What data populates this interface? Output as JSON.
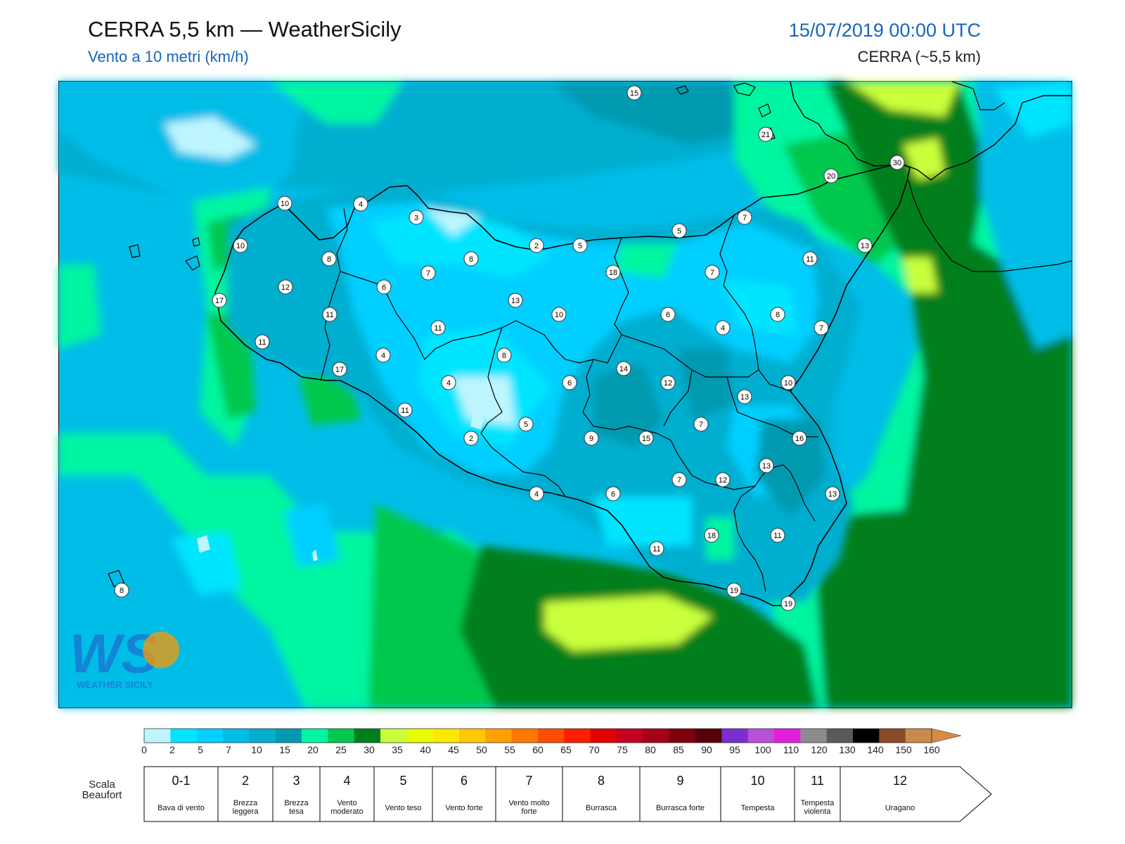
{
  "header": {
    "title": "CERRA 5,5 km — WeatherSicily",
    "subtitle": "Vento a 10 metri (km/h)",
    "date": "15/07/2019 00:00 UTC",
    "model": "CERRA (~5,5 km)"
  },
  "logo": {
    "letters": "WS",
    "text": "WEATHER SICILY"
  },
  "map": {
    "station_values": [
      {
        "id": "s1",
        "value": "15"
      },
      {
        "id": "s2",
        "value": "21"
      },
      {
        "id": "s3",
        "value": "30"
      },
      {
        "id": "s4",
        "value": "20"
      },
      {
        "id": "s5",
        "value": "10"
      },
      {
        "id": "s6",
        "value": "4"
      },
      {
        "id": "s7",
        "value": "3"
      },
      {
        "id": "s8",
        "value": "10"
      },
      {
        "id": "s9",
        "value": "2"
      },
      {
        "id": "s10",
        "value": "5"
      },
      {
        "id": "s11",
        "value": "5"
      },
      {
        "id": "s12",
        "value": "7"
      },
      {
        "id": "s13",
        "value": "13"
      },
      {
        "id": "s14",
        "value": "8"
      },
      {
        "id": "s15",
        "value": "8"
      },
      {
        "id": "s16",
        "value": "7"
      },
      {
        "id": "s17",
        "value": "18"
      },
      {
        "id": "s18",
        "value": "7"
      },
      {
        "id": "s19",
        "value": "11"
      },
      {
        "id": "s20",
        "value": "12"
      },
      {
        "id": "s21",
        "value": "6"
      },
      {
        "id": "s22",
        "value": "17"
      },
      {
        "id": "s23",
        "value": "11"
      },
      {
        "id": "s24",
        "value": "13"
      },
      {
        "id": "s25",
        "value": "10"
      },
      {
        "id": "s26",
        "value": "6"
      },
      {
        "id": "s27",
        "value": "4"
      },
      {
        "id": "s28",
        "value": "8"
      },
      {
        "id": "s29",
        "value": "7"
      },
      {
        "id": "s30",
        "value": "11"
      },
      {
        "id": "s31",
        "value": "11"
      },
      {
        "id": "s32",
        "value": "17"
      },
      {
        "id": "s33",
        "value": "4"
      },
      {
        "id": "s34",
        "value": "8"
      },
      {
        "id": "s35",
        "value": "14"
      },
      {
        "id": "s36",
        "value": "4"
      },
      {
        "id": "s37",
        "value": "6"
      },
      {
        "id": "s38",
        "value": "12"
      },
      {
        "id": "s39",
        "value": "13"
      },
      {
        "id": "s40",
        "value": "10"
      },
      {
        "id": "s41",
        "value": "11"
      },
      {
        "id": "s42",
        "value": "5"
      },
      {
        "id": "s43",
        "value": "2"
      },
      {
        "id": "s44",
        "value": "9"
      },
      {
        "id": "s45",
        "value": "15"
      },
      {
        "id": "s46",
        "value": "7"
      },
      {
        "id": "s47",
        "value": "16"
      },
      {
        "id": "s48",
        "value": "13"
      },
      {
        "id": "s49",
        "value": "7"
      },
      {
        "id": "s50",
        "value": "12"
      },
      {
        "id": "s51",
        "value": "4"
      },
      {
        "id": "s52",
        "value": "6"
      },
      {
        "id": "s53",
        "value": "13"
      },
      {
        "id": "s54",
        "value": "11"
      },
      {
        "id": "s55",
        "value": "18"
      },
      {
        "id": "s56",
        "value": "11"
      },
      {
        "id": "s57",
        "value": "19"
      },
      {
        "id": "s58",
        "value": "19"
      },
      {
        "id": "s59",
        "value": "8"
      }
    ]
  },
  "colorbar": {
    "unit_ticks": [
      "0",
      "2",
      "5",
      "7",
      "10",
      "15",
      "20",
      "25",
      "30",
      "35",
      "40",
      "45",
      "50",
      "55",
      "60",
      "65",
      "70",
      "75",
      "80",
      "85",
      "90",
      "95",
      "100",
      "110",
      "120",
      "130",
      "140",
      "150",
      "160"
    ],
    "colors": [
      "#bff5ff",
      "#00e5ff",
      "#00cfff",
      "#00bde8",
      "#00aed0",
      "#009ab0",
      "#00f5a0",
      "#00c84e",
      "#007f1e",
      "#c9ff3a",
      "#e8ff00",
      "#ffe800",
      "#ffc800",
      "#ffa000",
      "#ff7800",
      "#ff4c00",
      "#ff1e00",
      "#e00000",
      "#c40020",
      "#a50018",
      "#7e000a",
      "#55000a",
      "#7a2ed0",
      "#b84fd8",
      "#e020d8",
      "#8c8c8c",
      "#5a5a5a",
      "#000000",
      "#8a4a26",
      "#c98a4e"
    ],
    "arrow_color": "#d98a42"
  },
  "beaufort": {
    "title": "Scala Beaufort",
    "classes": [
      {
        "num": "0-1",
        "desc": "Bava di vento"
      },
      {
        "num": "2",
        "desc": "Brezza leggera"
      },
      {
        "num": "3",
        "desc": "Brezza tesa"
      },
      {
        "num": "4",
        "desc": "Vento moderato"
      },
      {
        "num": "5",
        "desc": "Vento teso"
      },
      {
        "num": "6",
        "desc": "Vento forte"
      },
      {
        "num": "7",
        "desc": "Vento molto forte"
      },
      {
        "num": "8",
        "desc": "Burrasca"
      },
      {
        "num": "9",
        "desc": "Burrasca forte"
      },
      {
        "num": "10",
        "desc": "Tempesta"
      },
      {
        "num": "11",
        "desc": "Tempesta violenta"
      },
      {
        "num": "12",
        "desc": "Uragano"
      }
    ]
  }
}
